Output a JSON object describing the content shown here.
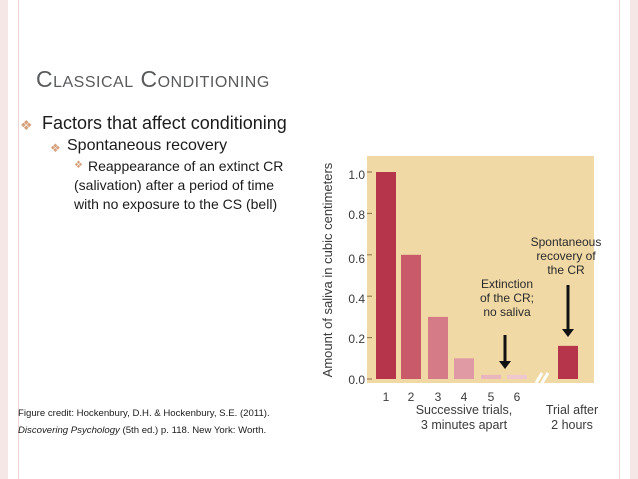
{
  "slide": {
    "title": "Classical Conditioning",
    "bullet1": "Factors that affect conditioning",
    "bullet2": "Spontaneous recovery",
    "bullet3": "Reappearance of an extinct CR (salivation) after a period of time with no exposure to the CS (bell)",
    "credit_line1": "Figure credit: Hockenbury, D.H. & Hockenbury, S.E. (2011).",
    "credit_book": "Discovering Psychology",
    "credit_rest": " (5th ed.) p. 118. New York: Worth."
  },
  "chart_data": {
    "type": "bar",
    "ylabel": "Amount of saliva in cubic centimeters",
    "ylim": [
      0,
      1.1
    ],
    "yticks": [
      "0.0",
      "0.2",
      "0.4",
      "0.6",
      "0.8",
      "1.0"
    ],
    "categories": [
      "1",
      "2",
      "3",
      "4",
      "5",
      "6",
      "Trial after 2 hours"
    ],
    "values": [
      1.0,
      0.6,
      0.3,
      0.1,
      0.02,
      0.02,
      0.16
    ],
    "xgroup_label_1": "Successive trials,",
    "xgroup_label_2": "3 minutes apart",
    "xgroup2_label_1": "Trial after",
    "xgroup2_label_2": "2 hours",
    "annotation_extinction": [
      "Extinction",
      "of the CR;",
      "no saliva"
    ],
    "annotation_recovery": [
      "Spontaneous",
      "recovery of",
      "the CR"
    ],
    "colors": {
      "panel": "#f1d9a6",
      "bar1": "#b6354b",
      "bar2": "#c95a6a",
      "bar3": "#d57b87",
      "bar4": "#df9aa3",
      "bar5": "#e8b6bc",
      "bar6": "#eec8cc",
      "bar_recovery": "#b6354b"
    }
  }
}
